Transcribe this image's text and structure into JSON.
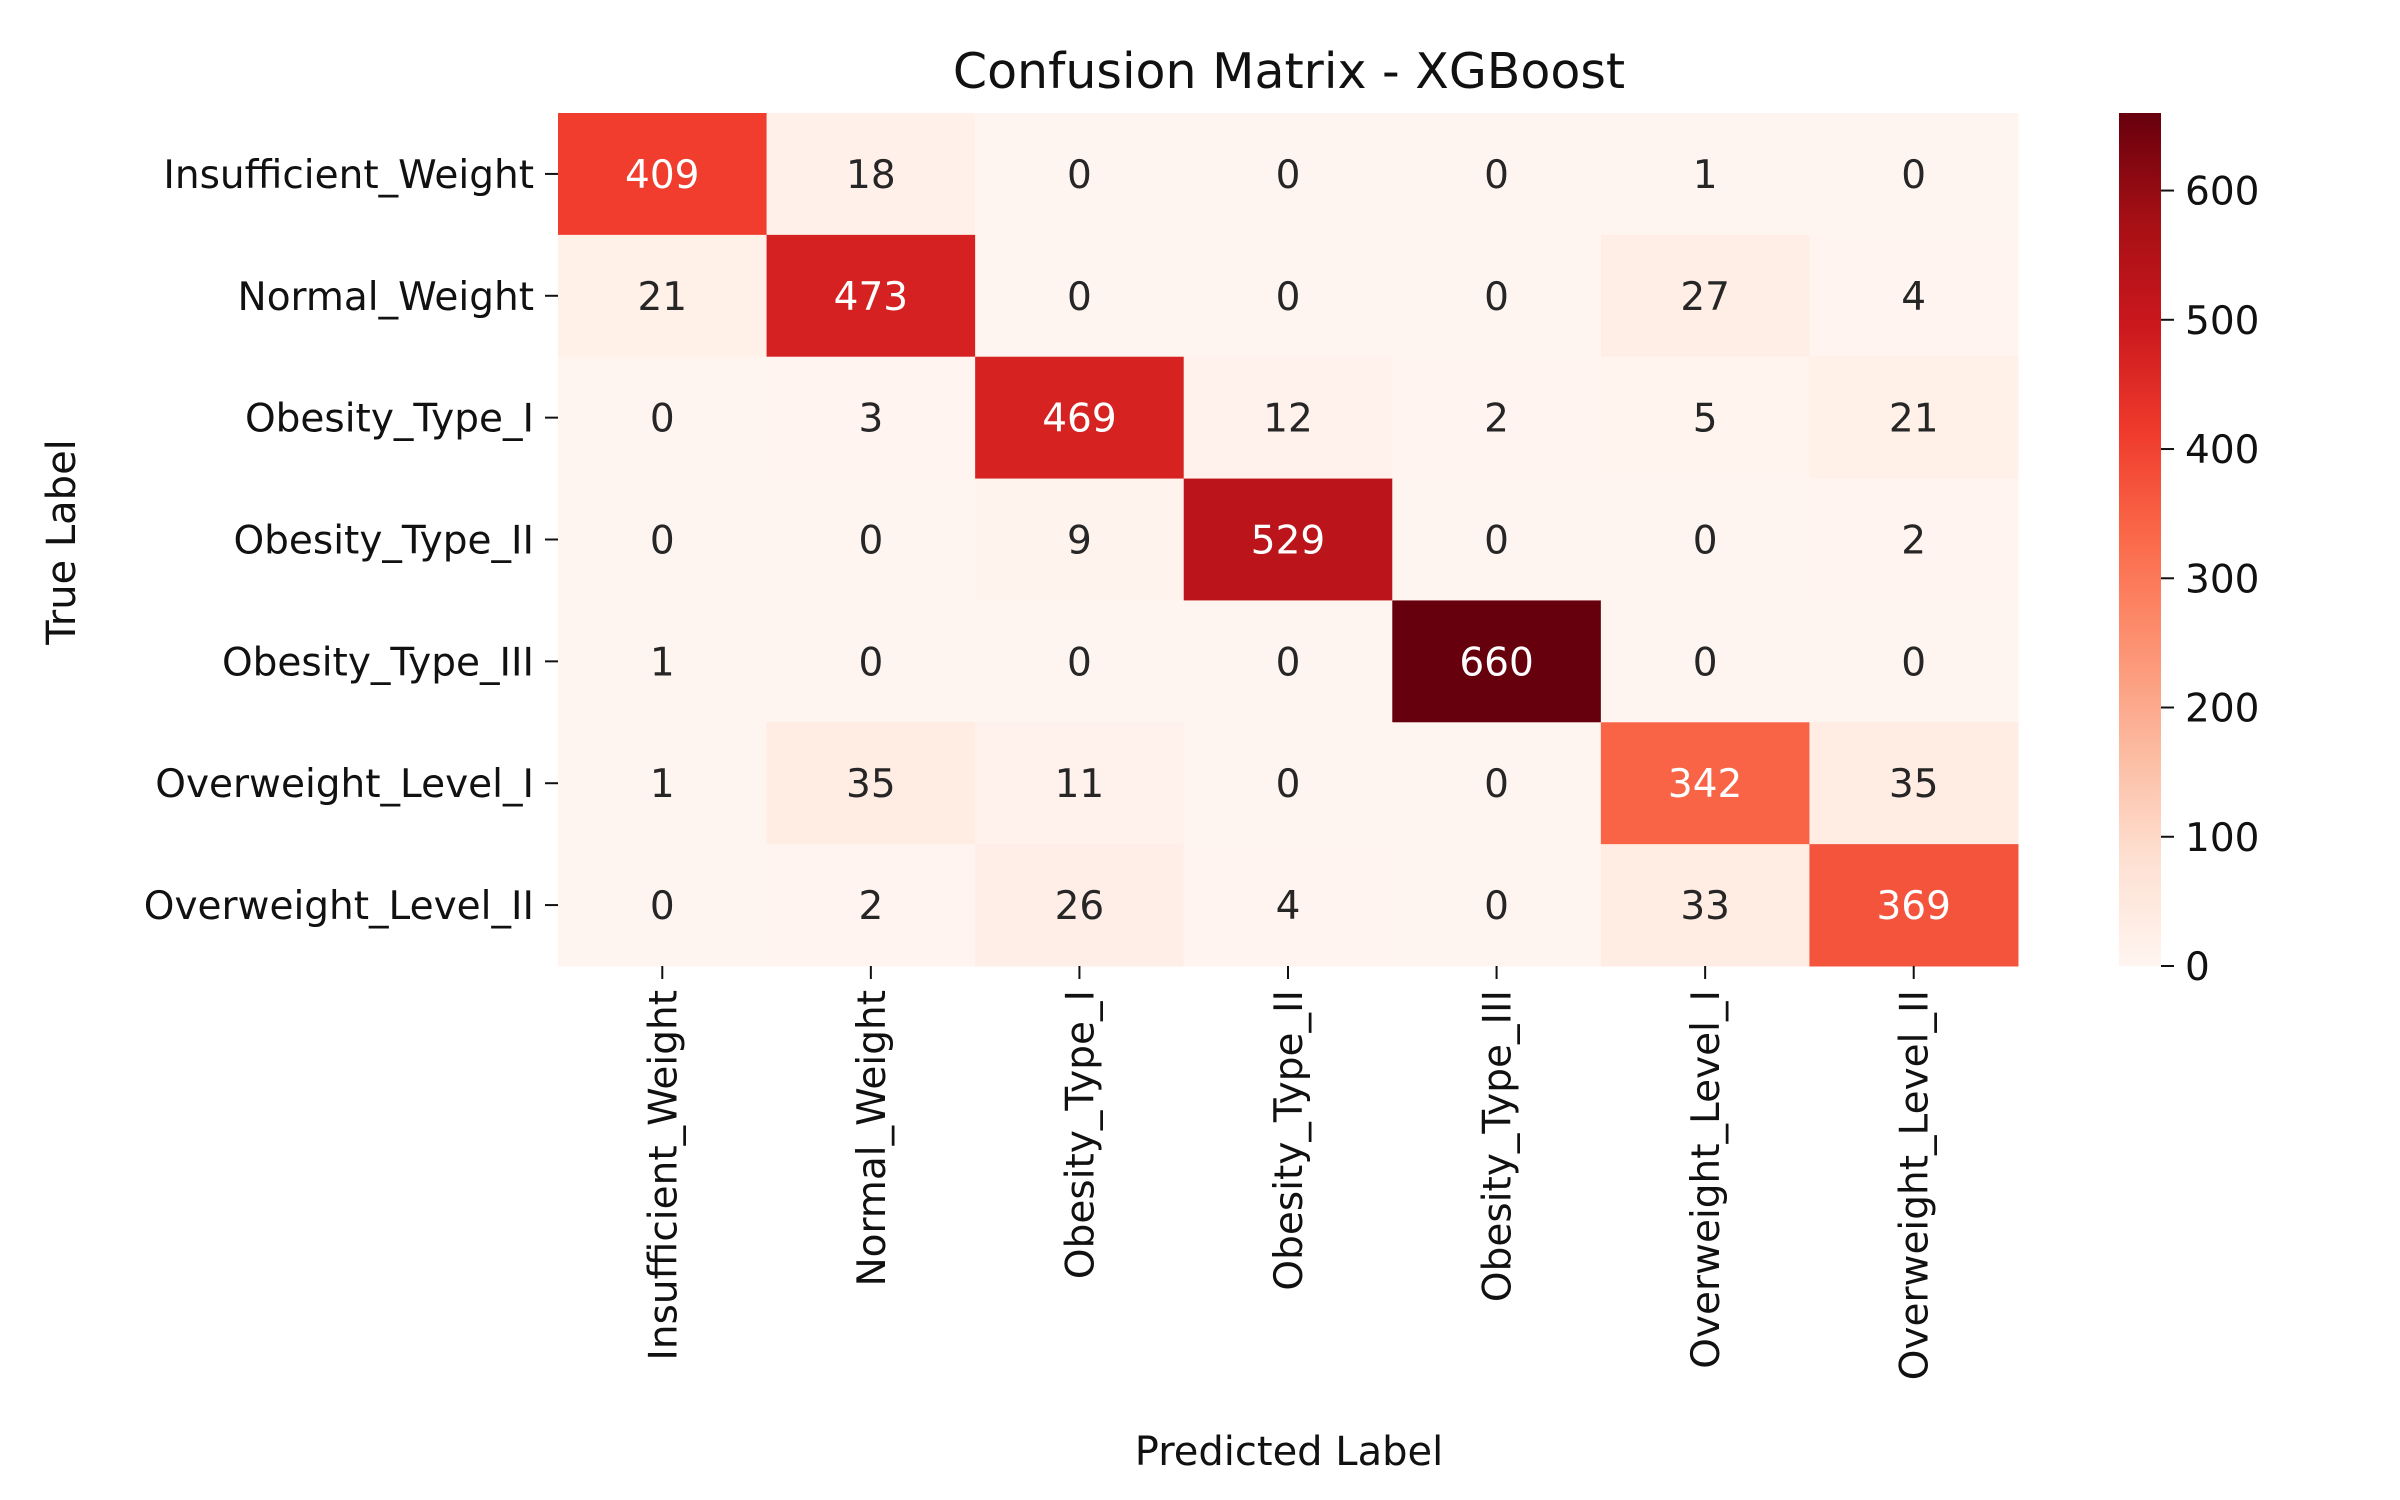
{
  "chart_data": {
    "type": "heatmap",
    "title": "Confusion Matrix - XGBoost",
    "xlabel": "Predicted Label",
    "ylabel": "True Label",
    "row_labels": [
      "Insufficient_Weight",
      "Normal_Weight",
      "Obesity_Type_I",
      "Obesity_Type_II",
      "Obesity_Type_III",
      "Overweight_Level_I",
      "Overweight_Level_II"
    ],
    "column_labels": [
      "Insufficient_Weight",
      "Normal_Weight",
      "Obesity_Type_I",
      "Obesity_Type_II",
      "Obesity_Type_III",
      "Overweight_Level_I",
      "Overweight_Level_II"
    ],
    "values": [
      [
        409,
        18,
        0,
        0,
        0,
        1,
        0
      ],
      [
        21,
        473,
        0,
        0,
        0,
        27,
        4
      ],
      [
        0,
        3,
        469,
        12,
        2,
        5,
        21
      ],
      [
        0,
        0,
        9,
        529,
        0,
        0,
        2
      ],
      [
        1,
        0,
        0,
        0,
        660,
        0,
        0
      ],
      [
        1,
        35,
        11,
        0,
        0,
        342,
        35
      ],
      [
        0,
        2,
        26,
        4,
        0,
        33,
        369
      ]
    ],
    "colorbar": {
      "colormap": "Reds",
      "min": 0,
      "max": 660,
      "ticks": [
        0,
        100,
        200,
        300,
        400,
        500,
        600
      ]
    },
    "annotation_text_threshold": 330,
    "colors": {
      "annotation_dark": "#262626",
      "annotation_light": "#ffffff",
      "tick": "#111111"
    }
  }
}
